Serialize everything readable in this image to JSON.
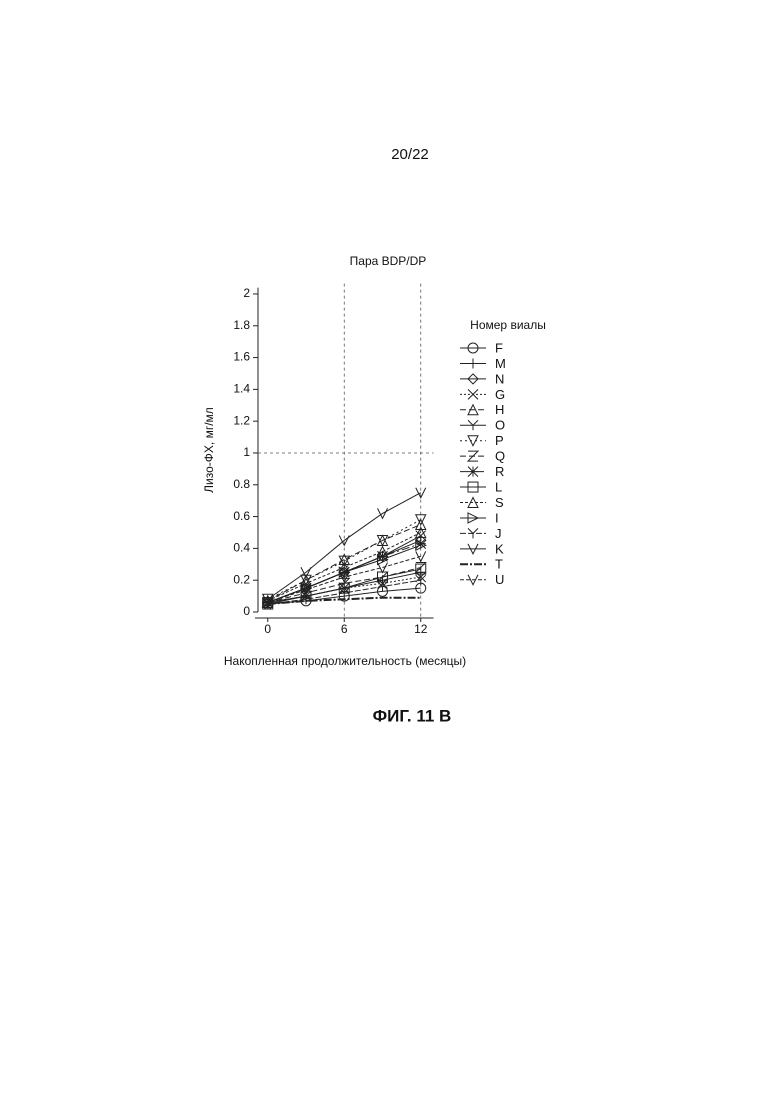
{
  "page_number": "20/22",
  "caption": "ФИГ. 11 B",
  "chart_data": {
    "type": "line",
    "title": "Пара BDP/DP",
    "x_label": "Накопленная продолжительность (месяцы)",
    "y_label": "Лизо-ФХ, мг/мл",
    "legend_title": "Номер виалы",
    "xlim": [
      -1,
      13
    ],
    "xticks": [
      0,
      6,
      12
    ],
    "ylim": [
      0,
      2.04
    ],
    "yticks": [
      0,
      0.2,
      0.4,
      0.6,
      0.8,
      1,
      1.2,
      1.4,
      1.6,
      1.8,
      2
    ],
    "vlines": [
      6,
      12
    ],
    "hlines": [
      1
    ],
    "x": [
      0,
      3,
      6,
      9,
      12
    ],
    "series": [
      {
        "name": "F",
        "marker": "circle",
        "dash": "none",
        "values": [
          0.05,
          0.07,
          0.1,
          0.13,
          0.15
        ]
      },
      {
        "name": "M",
        "marker": "plus",
        "dash": "none",
        "values": [
          0.06,
          0.1,
          0.15,
          0.2,
          0.25
        ]
      },
      {
        "name": "N",
        "marker": "diamond",
        "dash": "none",
        "values": [
          0.06,
          0.15,
          0.25,
          0.35,
          0.45
        ]
      },
      {
        "name": "G",
        "marker": "cross",
        "dash": "2 2",
        "values": [
          0.06,
          0.1,
          0.15,
          0.18,
          0.22
        ]
      },
      {
        "name": "H",
        "marker": "triangle",
        "dash": "6 3",
        "values": [
          0.07,
          0.2,
          0.33,
          0.45,
          0.55
        ]
      },
      {
        "name": "O",
        "marker": "y",
        "dash": "none",
        "values": [
          0.06,
          0.15,
          0.25,
          0.35,
          0.48
        ]
      },
      {
        "name": "P",
        "marker": "down",
        "dash": "2 3",
        "values": [
          0.08,
          0.2,
          0.32,
          0.45,
          0.58
        ]
      },
      {
        "name": "Q",
        "marker": "z",
        "dash": "6 3",
        "values": [
          0.06,
          0.12,
          0.18,
          0.22,
          0.28
        ]
      },
      {
        "name": "R",
        "marker": "star",
        "dash": "8 3 2 3",
        "values": [
          0.06,
          0.15,
          0.25,
          0.35,
          0.43
        ]
      },
      {
        "name": "L",
        "marker": "square",
        "dash": "none",
        "values": [
          0.05,
          0.1,
          0.15,
          0.22,
          0.27
        ]
      },
      {
        "name": "S",
        "marker": "triangle",
        "dash": "3 2",
        "values": [
          0.07,
          0.18,
          0.28,
          0.38,
          0.5
        ]
      },
      {
        "name": "I",
        "marker": "right",
        "dash": "none",
        "values": [
          0.06,
          0.15,
          0.25,
          0.33,
          0.42
        ]
      },
      {
        "name": "J",
        "marker": "y",
        "dash": "6 2",
        "values": [
          0.05,
          0.08,
          0.12,
          0.16,
          0.2
        ]
      },
      {
        "name": "K",
        "marker": "v",
        "dash": "none",
        "values": [
          0.08,
          0.25,
          0.45,
          0.62,
          0.75
        ]
      },
      {
        "name": "T",
        "marker": "none",
        "dash": "8 2 2 2",
        "values": [
          0.05,
          0.07,
          0.08,
          0.09,
          0.09
        ]
      },
      {
        "name": "U",
        "marker": "v",
        "dash": "4 2",
        "values": [
          0.06,
          0.14,
          0.22,
          0.28,
          0.35
        ]
      }
    ]
  }
}
